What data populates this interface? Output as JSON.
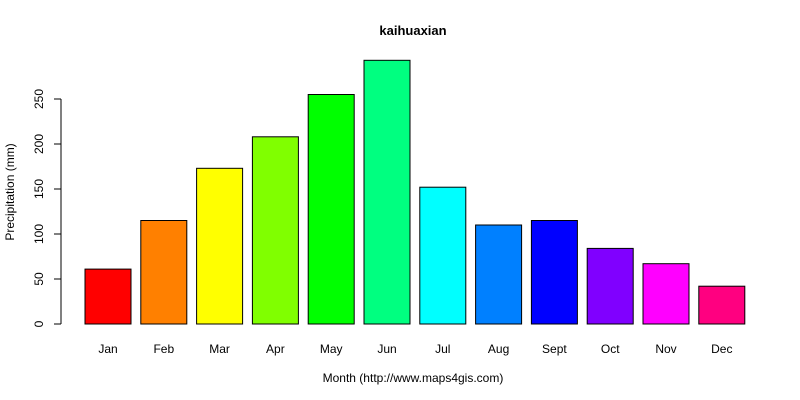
{
  "chart_data": {
    "type": "bar",
    "title": "kaihuaxian",
    "xlabel": "Month (http://www.maps4gis.com)",
    "ylabel": "Precipitation (mm)",
    "categories": [
      "Jan",
      "Feb",
      "Mar",
      "Apr",
      "May",
      "Jun",
      "Jul",
      "Aug",
      "Sept",
      "Oct",
      "Nov",
      "Dec"
    ],
    "values": [
      61,
      115,
      173,
      208,
      255,
      293,
      152,
      110,
      115,
      84,
      67,
      42
    ],
    "colors": [
      "#FF0000",
      "#FF8000",
      "#FFFF00",
      "#80FF00",
      "#00FF00",
      "#00FF80",
      "#00FFFF",
      "#0080FF",
      "#0000FF",
      "#8000FF",
      "#FF00FF",
      "#FF0080"
    ],
    "yticks": [
      0,
      50,
      100,
      150,
      200,
      250
    ],
    "ylim": [
      0,
      293
    ],
    "grid": false,
    "legend": "none"
  }
}
